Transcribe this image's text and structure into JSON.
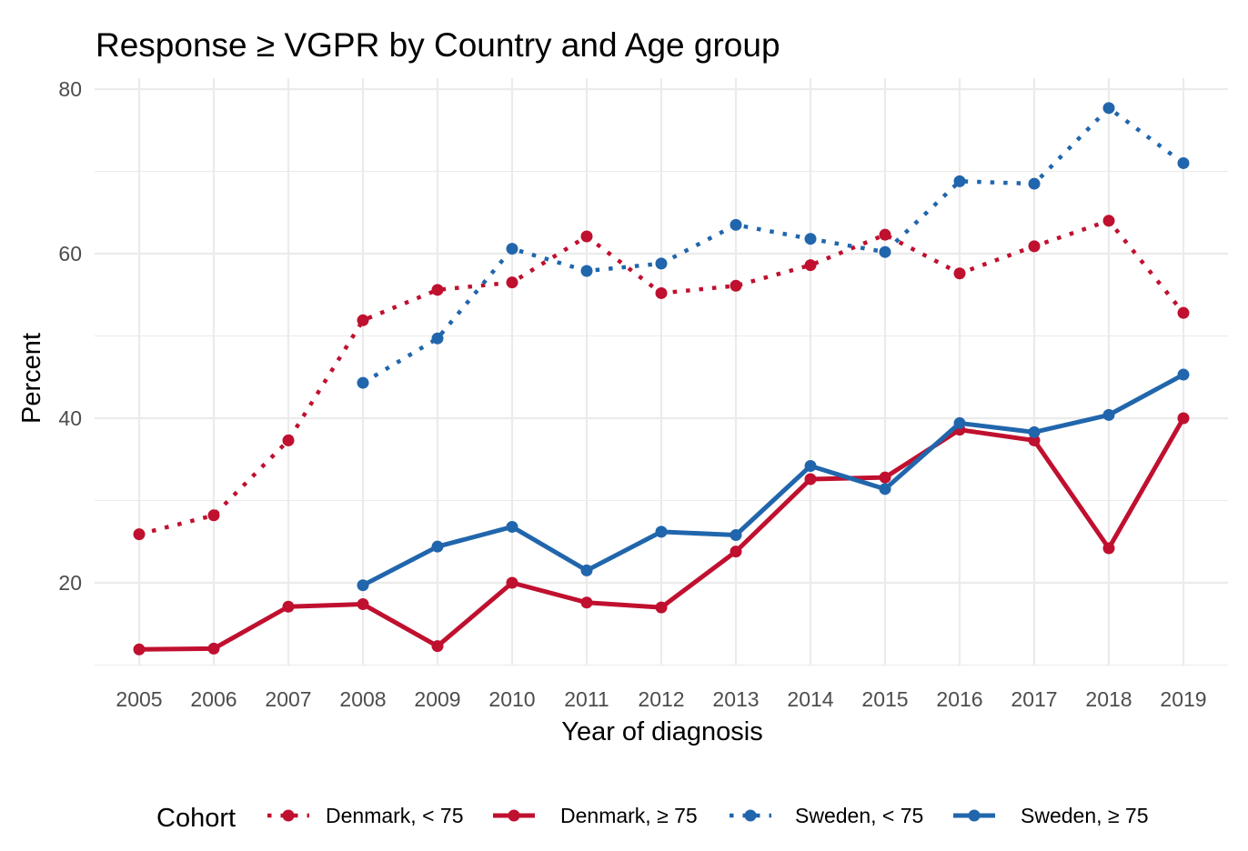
{
  "chart_data": {
    "type": "line",
    "title": "Response ≥ VGPR by Country and Age group",
    "xlabel": "Year of diagnosis",
    "ylabel": "Percent",
    "ylim": [
      10,
      80
    ],
    "y_ticks": [
      20,
      40,
      60,
      80
    ],
    "y_tick_labels": [
      "20",
      "40",
      "60",
      "80"
    ],
    "x": [
      2005,
      2006,
      2007,
      2008,
      2009,
      2010,
      2011,
      2012,
      2013,
      2014,
      2015,
      2016,
      2017,
      2018,
      2019
    ],
    "x_tick_labels": [
      "2005",
      "2006",
      "2007",
      "2008",
      "2009",
      "2010",
      "2011",
      "2012",
      "2013",
      "2014",
      "2015",
      "2016",
      "2017",
      "2018",
      "2019"
    ],
    "grid": true,
    "legend": {
      "title": "Cohort",
      "position": "bottom"
    },
    "series": [
      {
        "name": "Denmark, < 75",
        "color": "#c0102f",
        "line_style": "dotted",
        "values": [
          25.9,
          28.2,
          37.3,
          51.9,
          55.6,
          56.5,
          62.1,
          55.2,
          56.1,
          58.6,
          62.3,
          57.6,
          60.9,
          64.0,
          52.8
        ]
      },
      {
        "name": "Denmark, ≥ 75",
        "color": "#c0102f",
        "line_style": "solid",
        "values": [
          11.9,
          12.0,
          17.1,
          17.4,
          12.3,
          20.0,
          17.6,
          17.0,
          23.8,
          32.6,
          32.8,
          38.6,
          37.3,
          24.2,
          40.0
        ]
      },
      {
        "name": "Sweden, < 75",
        "color": "#2166ac",
        "line_style": "dotted",
        "values": [
          null,
          null,
          null,
          44.3,
          49.7,
          60.6,
          57.9,
          58.8,
          63.5,
          61.8,
          60.2,
          68.8,
          68.5,
          77.7,
          71.0
        ]
      },
      {
        "name": "Sweden, ≥ 75",
        "color": "#2166ac",
        "line_style": "solid",
        "values": [
          null,
          null,
          null,
          19.7,
          24.4,
          26.8,
          21.5,
          26.2,
          25.8,
          34.2,
          31.4,
          39.4,
          38.3,
          40.4,
          45.3
        ]
      }
    ]
  }
}
